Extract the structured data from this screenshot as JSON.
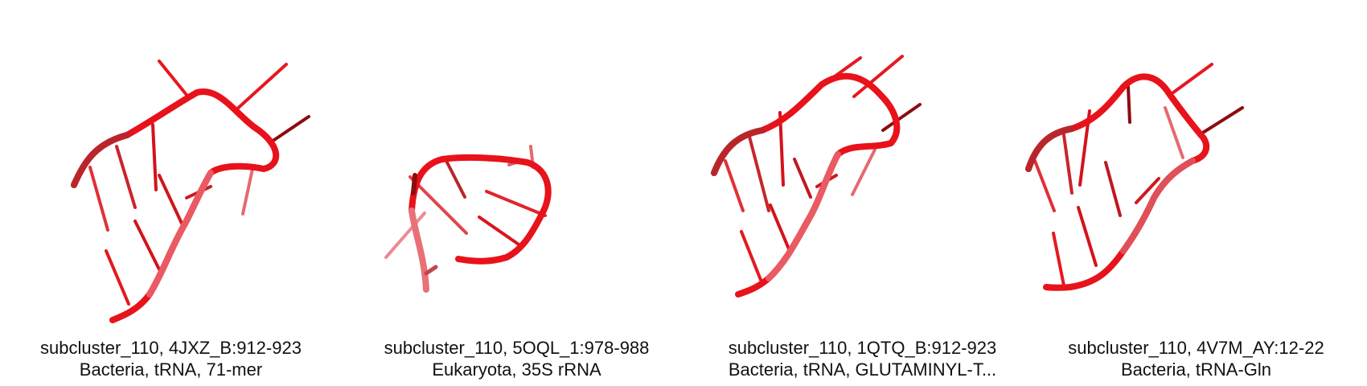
{
  "colors": {
    "strand": "#e8121b",
    "strand_light": "#ee6068",
    "strand_dark": "#8e0b10"
  },
  "panels": [
    {
      "line1": "subcluster_110, 4JXZ_B:912-923",
      "line2": "Bacteria, tRNA, 71-mer"
    },
    {
      "line1": "subcluster_110, 5OQL_1:978-988",
      "line2": "Eukaryota, 35S rRNA"
    },
    {
      "line1": "subcluster_110, 1QTQ_B:912-923",
      "line2": "Bacteria, tRNA, GLUTAMINYL-T..."
    },
    {
      "line1": "subcluster_110, 4V7M_AY:12-22",
      "line2": "Bacteria, tRNA-Gln"
    }
  ]
}
